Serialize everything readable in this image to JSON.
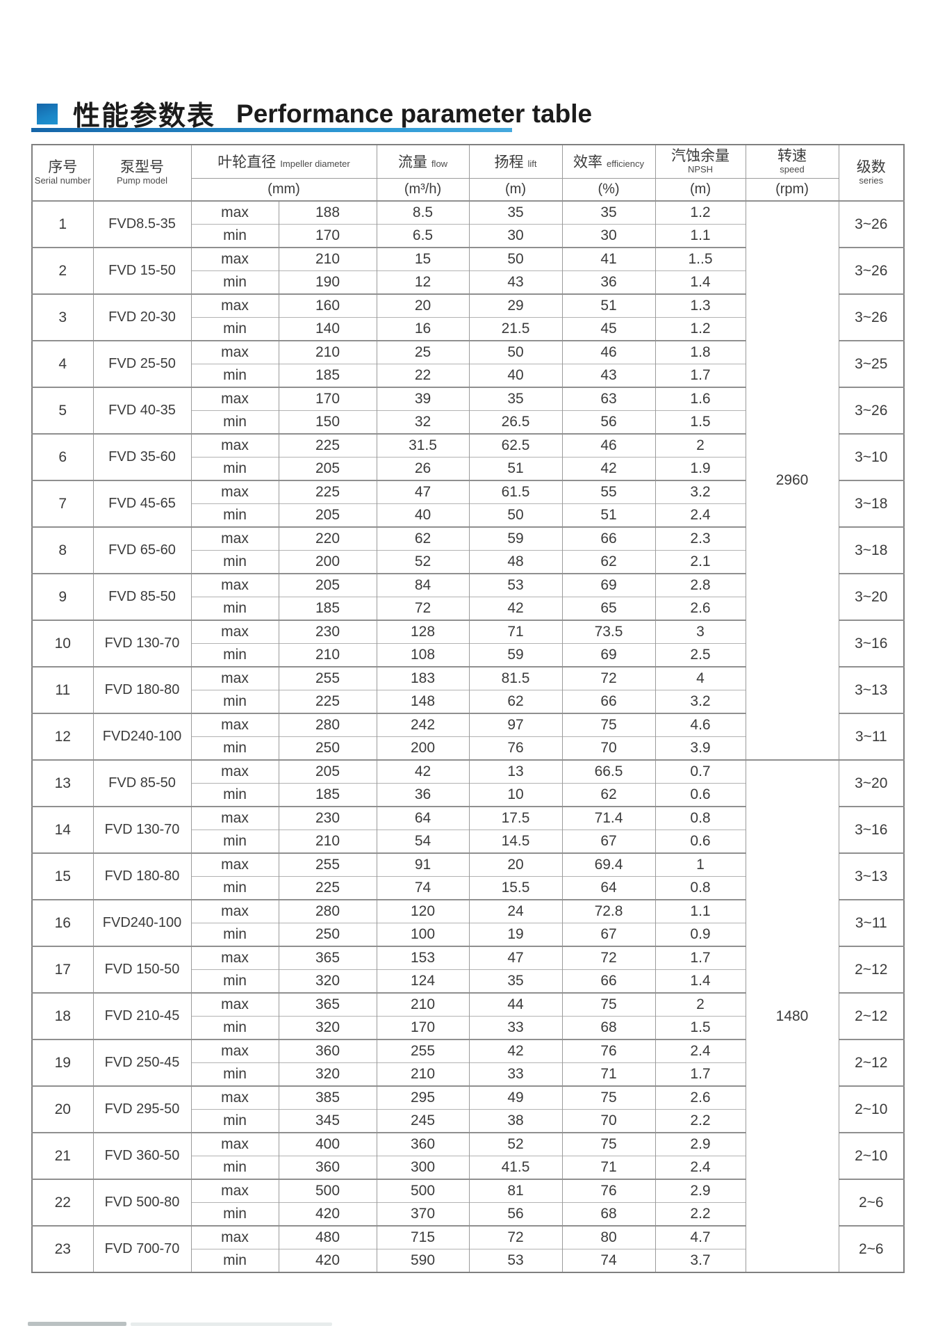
{
  "title": {
    "zh": "性能参数表",
    "en": "Performance parameter table"
  },
  "header": {
    "serial": {
      "zh": "序号",
      "en": "Serial number"
    },
    "model": {
      "zh": "泵型号",
      "en": "Pump model"
    },
    "impeller": {
      "zh": "叶轮直径",
      "en": "Impeller diameter",
      "unit": "(mm)"
    },
    "flow": {
      "zh": "流量",
      "en": "flow",
      "unit": "(m³/h)"
    },
    "lift": {
      "zh": "扬程",
      "en": "lift",
      "unit": "(m)"
    },
    "efficiency": {
      "zh": "效率",
      "en": "efficiency",
      "unit": "(%)"
    },
    "npsh": {
      "zh": "汽蚀余量",
      "en": "NPSH",
      "unit": "(m)"
    },
    "speed": {
      "zh": "转速",
      "en": "speed",
      "unit": "(rpm)"
    },
    "series": {
      "zh": "级数",
      "en": "series"
    }
  },
  "row_labels": {
    "max": "max",
    "min": "min"
  },
  "speed_groups": [
    {
      "value": "2960",
      "span_rows": 12
    },
    {
      "value": "1480",
      "span_rows": 11
    }
  ],
  "rows": [
    {
      "no": "1",
      "model": "FVD8.5-35",
      "max": [
        "188",
        "8.5",
        "35",
        "35",
        "1.2"
      ],
      "min": [
        "170",
        "6.5",
        "30",
        "30",
        "1.1"
      ],
      "series": "3~26"
    },
    {
      "no": "2",
      "model": "FVD 15-50",
      "max": [
        "210",
        "15",
        "50",
        "41",
        "1..5"
      ],
      "min": [
        "190",
        "12",
        "43",
        "36",
        "1.4"
      ],
      "series": "3~26"
    },
    {
      "no": "3",
      "model": "FVD 20-30",
      "max": [
        "160",
        "20",
        "29",
        "51",
        "1.3"
      ],
      "min": [
        "140",
        "16",
        "21.5",
        "45",
        "1.2"
      ],
      "series": "3~26"
    },
    {
      "no": "4",
      "model": "FVD 25-50",
      "max": [
        "210",
        "25",
        "50",
        "46",
        "1.8"
      ],
      "min": [
        "185",
        "22",
        "40",
        "43",
        "1.7"
      ],
      "series": "3~25"
    },
    {
      "no": "5",
      "model": "FVD 40-35",
      "max": [
        "170",
        "39",
        "35",
        "63",
        "1.6"
      ],
      "min": [
        "150",
        "32",
        "26.5",
        "56",
        "1.5"
      ],
      "series": "3~26"
    },
    {
      "no": "6",
      "model": "FVD 35-60",
      "max": [
        "225",
        "31.5",
        "62.5",
        "46",
        "2"
      ],
      "min": [
        "205",
        "26",
        "51",
        "42",
        "1.9"
      ],
      "series": "3~10"
    },
    {
      "no": "7",
      "model": "FVD 45-65",
      "max": [
        "225",
        "47",
        "61.5",
        "55",
        "3.2"
      ],
      "min": [
        "205",
        "40",
        "50",
        "51",
        "2.4"
      ],
      "series": "3~18"
    },
    {
      "no": "8",
      "model": "FVD 65-60",
      "max": [
        "220",
        "62",
        "59",
        "66",
        "2.3"
      ],
      "min": [
        "200",
        "52",
        "48",
        "62",
        "2.1"
      ],
      "series": "3~18"
    },
    {
      "no": "9",
      "model": "FVD 85-50",
      "max": [
        "205",
        "84",
        "53",
        "69",
        "2.8"
      ],
      "min": [
        "185",
        "72",
        "42",
        "65",
        "2.6"
      ],
      "series": "3~20"
    },
    {
      "no": "10",
      "model": "FVD 130-70",
      "max": [
        "230",
        "128",
        "71",
        "73.5",
        "3"
      ],
      "min": [
        "210",
        "108",
        "59",
        "69",
        "2.5"
      ],
      "series": "3~16"
    },
    {
      "no": "11",
      "model": "FVD 180-80",
      "max": [
        "255",
        "183",
        "81.5",
        "72",
        "4"
      ],
      "min": [
        "225",
        "148",
        "62",
        "66",
        "3.2"
      ],
      "series": "3~13"
    },
    {
      "no": "12",
      "model": "FVD240-100",
      "max": [
        "280",
        "242",
        "97",
        "75",
        "4.6"
      ],
      "min": [
        "250",
        "200",
        "76",
        "70",
        "3.9"
      ],
      "series": "3~11"
    },
    {
      "no": "13",
      "model": "FVD 85-50",
      "max": [
        "205",
        "42",
        "13",
        "66.5",
        "0.7"
      ],
      "min": [
        "185",
        "36",
        "10",
        "62",
        "0.6"
      ],
      "series": "3~20"
    },
    {
      "no": "14",
      "model": "FVD 130-70",
      "max": [
        "230",
        "64",
        "17.5",
        "71.4",
        "0.8"
      ],
      "min": [
        "210",
        "54",
        "14.5",
        "67",
        "0.6"
      ],
      "series": "3~16"
    },
    {
      "no": "15",
      "model": "FVD 180-80",
      "max": [
        "255",
        "91",
        "20",
        "69.4",
        "1"
      ],
      "min": [
        "225",
        "74",
        "15.5",
        "64",
        "0.8"
      ],
      "series": "3~13"
    },
    {
      "no": "16",
      "model": "FVD240-100",
      "max": [
        "280",
        "120",
        "24",
        "72.8",
        "1.1"
      ],
      "min": [
        "250",
        "100",
        "19",
        "67",
        "0.9"
      ],
      "series": "3~11"
    },
    {
      "no": "17",
      "model": "FVD 150-50",
      "max": [
        "365",
        "153",
        "47",
        "72",
        "1.7"
      ],
      "min": [
        "320",
        "124",
        "35",
        "66",
        "1.4"
      ],
      "series": "2~12"
    },
    {
      "no": "18",
      "model": "FVD 210-45",
      "max": [
        "365",
        "210",
        "44",
        "75",
        "2"
      ],
      "min": [
        "320",
        "170",
        "33",
        "68",
        "1.5"
      ],
      "series": "2~12"
    },
    {
      "no": "19",
      "model": "FVD 250-45",
      "max": [
        "360",
        "255",
        "42",
        "76",
        "2.4"
      ],
      "min": [
        "320",
        "210",
        "33",
        "71",
        "1.7"
      ],
      "series": "2~12"
    },
    {
      "no": "20",
      "model": "FVD 295-50",
      "max": [
        "385",
        "295",
        "49",
        "75",
        "2.6"
      ],
      "min": [
        "345",
        "245",
        "38",
        "70",
        "2.2"
      ],
      "series": "2~10"
    },
    {
      "no": "21",
      "model": "FVD 360-50",
      "max": [
        "400",
        "360",
        "52",
        "75",
        "2.9"
      ],
      "min": [
        "360",
        "300",
        "41.5",
        "71",
        "2.4"
      ],
      "series": "2~10"
    },
    {
      "no": "22",
      "model": "FVD 500-80",
      "max": [
        "500",
        "500",
        "81",
        "76",
        "2.9"
      ],
      "min": [
        "420",
        "370",
        "56",
        "68",
        "2.2"
      ],
      "series": "2~6"
    },
    {
      "no": "23",
      "model": "FVD 700-70",
      "max": [
        "480",
        "715",
        "72",
        "80",
        "4.7"
      ],
      "min": [
        "420",
        "590",
        "53",
        "74",
        "3.7"
      ],
      "series": "2~6"
    }
  ]
}
